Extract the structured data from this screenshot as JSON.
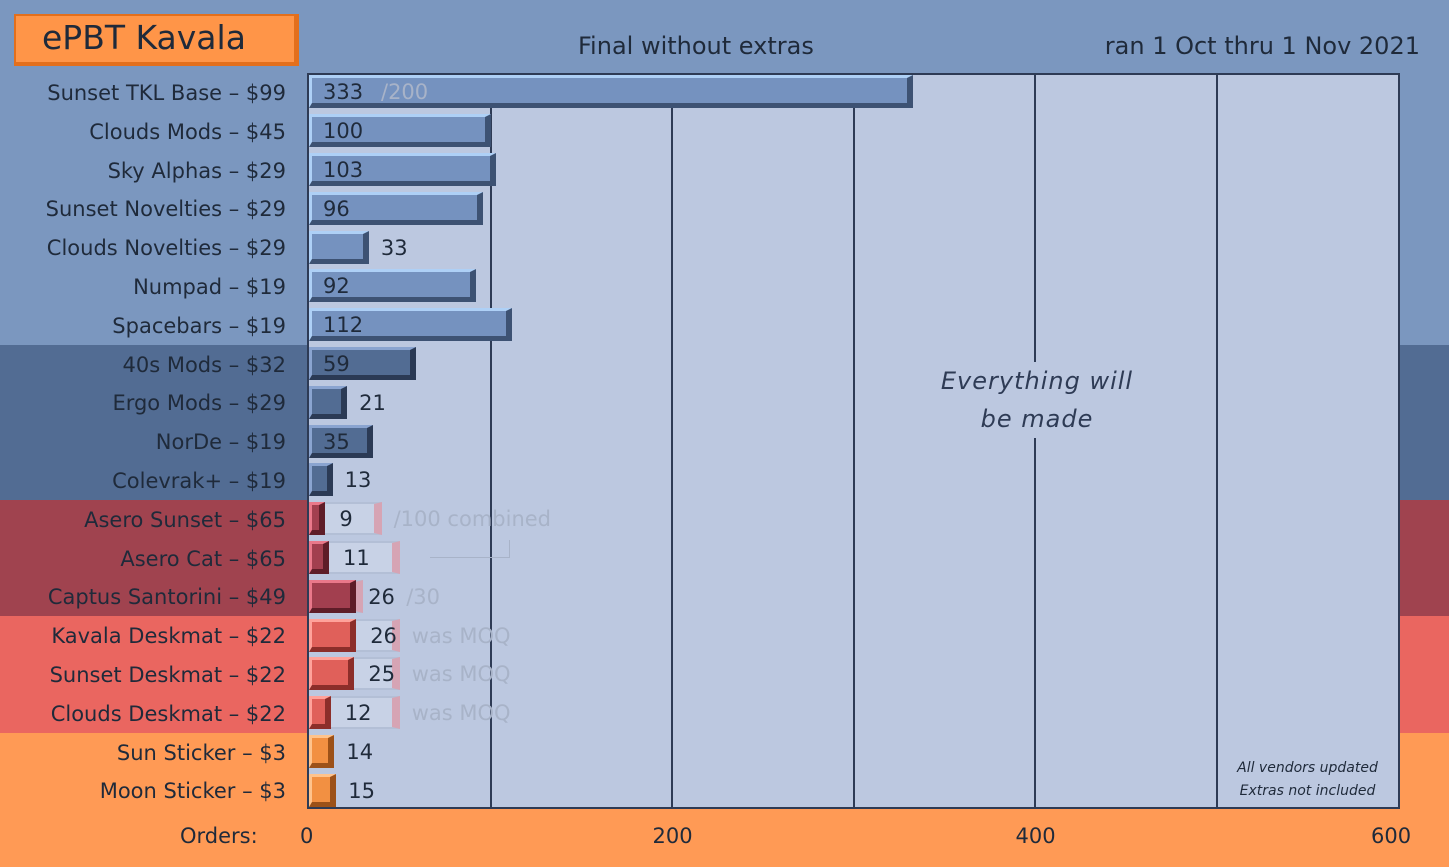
{
  "title": "ePBT Kavala",
  "subtitle_center": "Final without extras",
  "subtitle_right": "ran 1 Oct thru 1 Nov 2021",
  "chart_data": {
    "type": "bar",
    "orientation": "horizontal",
    "xlabel": "Orders:",
    "xlim": [
      0,
      600
    ],
    "x_ticks": [
      "0",
      "200",
      "400",
      "600"
    ],
    "grid": true,
    "categories": [
      "Sunset TKL Base – $99",
      "Clouds Mods – $45",
      "Sky Alphas – $29",
      "Sunset Novelties – $29",
      "Clouds Novelties – $29",
      "Numpad – $19",
      "Spacebars – $19",
      "40s Mods – $32",
      "Ergo Mods – $29",
      "NorDe – $19",
      "Colevrak+ – $19",
      "Asero Sunset – $65",
      "Asero Cat – $65",
      "Captus Santorini – $49",
      "Kavala Deskmat – $22",
      "Sunset Deskmat – $22",
      "Clouds Deskmat – $22",
      "Sun Sticker – $3",
      "Moon Sticker – $3"
    ],
    "values": [
      333,
      100,
      103,
      96,
      33,
      92,
      112,
      59,
      21,
      35,
      13,
      9,
      11,
      26,
      26,
      25,
      12,
      14,
      15
    ],
    "value_labels": [
      "333",
      "100",
      "103",
      "96",
      "33",
      "92",
      "112",
      "59",
      "21",
      "35",
      "13",
      "9",
      "11",
      "26",
      "26",
      "25",
      "12",
      "14",
      "15"
    ],
    "targets": [
      200,
      null,
      null,
      null,
      null,
      null,
      null,
      null,
      null,
      null,
      null,
      40,
      50,
      30,
      50,
      50,
      50,
      null,
      null
    ],
    "notes": [
      "/200",
      "",
      "",
      "",
      "",
      "",
      "",
      "",
      "",
      "",
      "",
      "/100 combined",
      "",
      "/30",
      "was MOQ",
      "was MOQ",
      "was MOQ",
      "",
      ""
    ],
    "groups": [
      {
        "rows": [
          0,
          6
        ],
        "band": "#7b97bf",
        "fill": "#7592bf",
        "edge": "#aed0f6",
        "shadow": "#3d5273"
      },
      {
        "rows": [
          7,
          10
        ],
        "band": "#526c93",
        "fill": "#526c93",
        "edge": "#8aa4d0",
        "shadow": "#2b3a55"
      },
      {
        "rows": [
          11,
          13
        ],
        "band": "#a0434f",
        "fill": "#a23f4f",
        "edge": "#e9788a",
        "shadow": "#5e1d28"
      },
      {
        "rows": [
          14,
          16
        ],
        "band": "#ea6660",
        "fill": "#e0605a",
        "edge": "#ffa29a",
        "shadow": "#8c2e2a"
      },
      {
        "rows": [
          17,
          18
        ],
        "band": "#ff9a55",
        "fill": "#f29042",
        "edge": "#ffc38c",
        "shadow": "#9c5118"
      }
    ],
    "annotations": [
      "Everything will",
      "be made"
    ],
    "footnotes": [
      "All vendors updated",
      "Extras not included"
    ]
  }
}
